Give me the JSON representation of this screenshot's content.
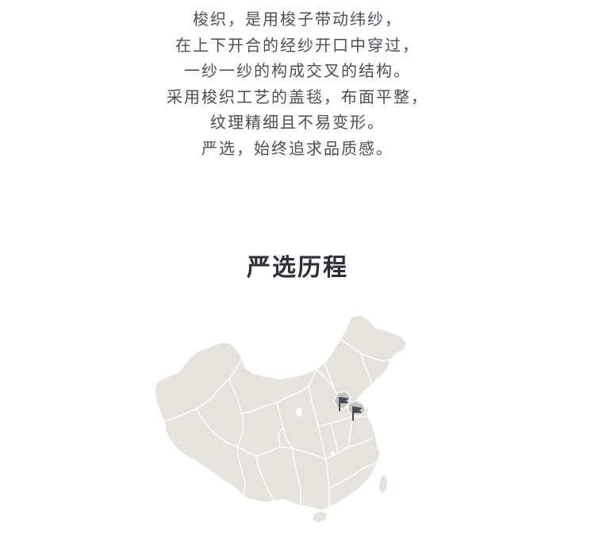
{
  "intro": {
    "lines": [
      "梭织，是用梭子带动纬纱，",
      "在上下开合的经纱开口中穿过，",
      "一纱一纱的构成交叉的结构。",
      "采用梭织工艺的盖毯，布面平整，",
      "纹理精细且不易变形。",
      "严选，始终追求品质感。"
    ]
  },
  "section": {
    "title": "严选历程"
  },
  "map": {
    "markers": [
      "flag-icon",
      "flag-icon"
    ],
    "colors": {
      "land": "#e6e3df",
      "highlight": "#c6c3bf",
      "flag": "#4a4c57"
    }
  }
}
